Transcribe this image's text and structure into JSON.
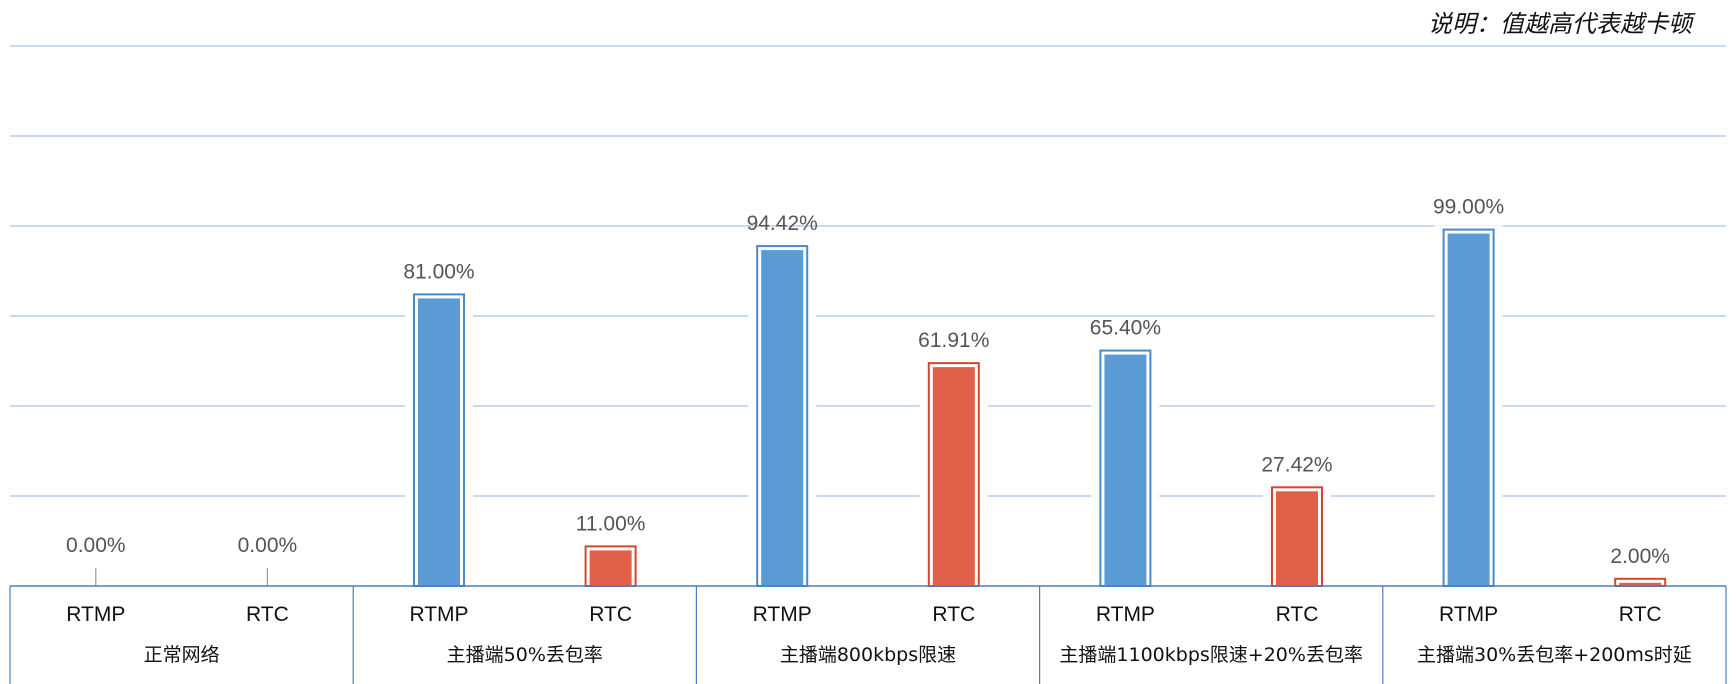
{
  "note": "说明：值越高代表越卡顿",
  "chart_data": {
    "type": "bar",
    "title": "",
    "xlabel": "",
    "ylabel": "",
    "ylim": [
      0,
      100
    ],
    "grid": true,
    "bar_colors": {
      "RTMP": "#5b9bd5",
      "RTC": "#e0604a"
    },
    "colors": {
      "grid": "#a9c4e4",
      "axis": "#4a7fbf",
      "bar_border_blue": "#4a88cc",
      "bar_border_red": "#d2452f"
    },
    "groups": [
      {
        "label": "正常网络",
        "bars": [
          {
            "category": "RTMP",
            "value": 0.0,
            "label": "0.00%"
          },
          {
            "category": "RTC",
            "value": 0.0,
            "label": "0.00%"
          }
        ]
      },
      {
        "label": "主播端50%丢包率",
        "bars": [
          {
            "category": "RTMP",
            "value": 81.0,
            "label": "81.00%"
          },
          {
            "category": "RTC",
            "value": 11.0,
            "label": "11.00%"
          }
        ]
      },
      {
        "label": "主播端800kbps限速",
        "bars": [
          {
            "category": "RTMP",
            "value": 94.42,
            "label": "94.42%"
          },
          {
            "category": "RTC",
            "value": 61.91,
            "label": "61.91%"
          }
        ]
      },
      {
        "label": "主播端1100kbps限速+20%丢包率",
        "bars": [
          {
            "category": "RTMP",
            "value": 65.4,
            "label": "65.40%"
          },
          {
            "category": "RTC",
            "value": 27.42,
            "label": "27.42%"
          }
        ]
      },
      {
        "label": "主播端30%丢包率+200ms时延",
        "bars": [
          {
            "category": "RTMP",
            "value": 99.0,
            "label": "99.00%"
          },
          {
            "category": "RTC",
            "value": 2.0,
            "label": "2.00%"
          }
        ]
      }
    ]
  }
}
